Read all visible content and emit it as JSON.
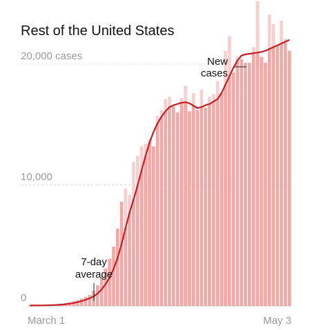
{
  "chart_data": {
    "type": "bar",
    "title": "Rest of the United States",
    "x_labels": [
      "March 1",
      "May 3"
    ],
    "y_ticks": [
      {
        "value": 0,
        "label": "0"
      },
      {
        "value": 10000,
        "label": "10,000"
      },
      {
        "value": 20000,
        "label": "20,000 cases"
      }
    ],
    "ylim": [
      0,
      24500
    ],
    "annotations": {
      "new_cases": [
        "New",
        "cases"
      ],
      "average": [
        "7-day",
        "average"
      ]
    },
    "colors": {
      "bar": "#f4a8a6",
      "bar_light": "#f9cfce",
      "line": "#c81d25",
      "axis_text": "#9a9a9a"
    },
    "series": [
      {
        "name": "New cases",
        "values": [
          30,
          35,
          40,
          45,
          60,
          80,
          100,
          120,
          180,
          220,
          300,
          380,
          480,
          600,
          750,
          900,
          1250,
          1700,
          2400,
          3100,
          3900,
          4900,
          6400,
          8600,
          9700,
          9200,
          11900,
          12400,
          13200,
          13400,
          13800,
          13200,
          15700,
          16200,
          17100,
          17300,
          16500,
          16000,
          17200,
          18200,
          16100,
          17600,
          16200,
          17900,
          16400,
          17300,
          17500,
          18600,
          17600,
          21100,
          22300,
          19300,
          20600,
          20400,
          20100,
          20100,
          21400,
          25200,
          20600,
          20100,
          24100,
          23300,
          21500,
          23600,
          22100,
          21100
        ]
      },
      {
        "name": "7-day average",
        "values": [
          30,
          32,
          35,
          38,
          45,
          55,
          70,
          85,
          110,
          140,
          180,
          240,
          310,
          400,
          500,
          620,
          780,
          1020,
          1360,
          1800,
          2350,
          3050,
          3950,
          5100,
          6450,
          7700,
          8800,
          9950,
          11200,
          12400,
          13500,
          14400,
          15100,
          15650,
          16100,
          16450,
          16600,
          16700,
          16800,
          16850,
          16750,
          16550,
          16350,
          16450,
          16600,
          16700,
          16900,
          17100,
          17600,
          18300,
          19000,
          19700,
          20300,
          20700,
          20800,
          20850,
          20900,
          20950,
          21000,
          21100,
          21250,
          21400,
          21550,
          21700,
          21850,
          22000
        ]
      }
    ]
  }
}
